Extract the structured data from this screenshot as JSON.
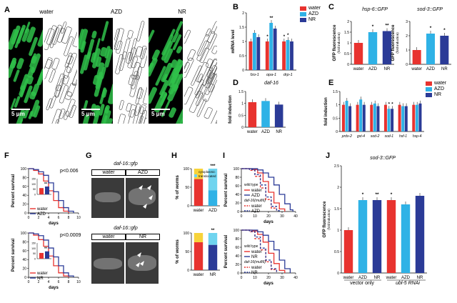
{
  "labels": {
    "A": "A",
    "B": "B",
    "C": "C",
    "D": "D",
    "E": "E",
    "F": "F",
    "G": "G",
    "H": "H",
    "I": "I",
    "J": "J"
  },
  "panelA": {
    "titles": [
      "water",
      "AZD",
      "NR"
    ],
    "scale": "5 μm"
  },
  "legend_main": {
    "items": [
      "water",
      "AZD",
      "NR"
    ],
    "colors": [
      "#e8332f",
      "#2fb2e6",
      "#2b3b97"
    ]
  },
  "panelC": {
    "titles": [
      "hsp-6::GFP",
      "sod-3::GFP"
    ]
  },
  "panelD": {
    "title": "daf-16"
  },
  "panelG": {
    "title_top": "daf-16::gfp",
    "title_bottom": "daf-16::gfp",
    "top_tabs": [
      "water",
      "AZD"
    ],
    "bottom_tabs": [
      "water",
      "NR"
    ]
  },
  "panelF": {
    "pvals": [
      "p<0.006",
      "p<0.0009"
    ]
  },
  "panelI": {
    "wt": "wild type",
    "mut": "daf-16(mu86)"
  },
  "panelJ": {
    "title": "sod-3::GFP",
    "groups": [
      "vector only",
      "ubl-5 RNAi"
    ]
  },
  "chart_data": [
    {
      "id": "B",
      "type": "bar",
      "categories": [
        "fzo-1",
        "opa-1",
        "drp-1"
      ],
      "ylabel": "mRNA level",
      "ylim": [
        0,
        2.0
      ],
      "yticks": [
        0,
        0.5,
        1.0,
        1.5,
        2.0
      ],
      "series": [
        {
          "name": "water",
          "values": [
            1.0,
            1.0,
            1.0
          ]
        },
        {
          "name": "AZD",
          "values": [
            1.3,
            1.65,
            1.05
          ]
        },
        {
          "name": "NR",
          "values": [
            1.15,
            1.45,
            1.0
          ]
        }
      ],
      "sig": [
        [
          "",
          "*",
          "*"
        ],
        [
          "",
          "**",
          "*"
        ],
        [
          "",
          "",
          ""
        ]
      ]
    },
    {
      "id": "C1",
      "type": "bar",
      "categories": [
        "water",
        "AZD",
        "NR"
      ],
      "ylabel": "GFP fluorescence",
      "ysub": "(fold induction)",
      "ylim": [
        0,
        2.0
      ],
      "yticks": [
        0,
        0.5,
        1.0,
        1.5,
        2.0
      ],
      "values": [
        1.0,
        1.5,
        1.55
      ],
      "sig": [
        "",
        "*",
        "**"
      ]
    },
    {
      "id": "C2",
      "type": "bar",
      "categories": [
        "water",
        "AZD",
        "NR"
      ],
      "ylabel": "GFP fluorescence",
      "ysub": "(fold induction)",
      "ylim": [
        0,
        3
      ],
      "yticks": [
        0,
        1,
        2,
        3
      ],
      "values": [
        1.0,
        2.15,
        2.0
      ],
      "sig": [
        "",
        "*",
        "*"
      ]
    },
    {
      "id": "D",
      "type": "bar",
      "categories": [
        "water",
        "AZD",
        "NR"
      ],
      "ylabel": "fold induction",
      "ylim": [
        0,
        1.5
      ],
      "yticks": [
        0,
        0.5,
        1.0,
        1.5
      ],
      "values": [
        1.05,
        1.1,
        0.95
      ]
    },
    {
      "id": "E",
      "type": "bar",
      "categories": [
        "prdx-2",
        "gst-4",
        "sod-2",
        "sod-1",
        "hsf-1",
        "hsp-4"
      ],
      "ylabel": "fold induction",
      "ylim": [
        0,
        1.5
      ],
      "yticks": [
        0,
        0.5,
        1.0,
        1.5
      ],
      "series": [
        {
          "name": "water",
          "values": [
            1.0,
            1.0,
            1.0,
            1.0,
            1.0,
            1.0
          ]
        },
        {
          "name": "AZD",
          "values": [
            1.15,
            1.2,
            1.05,
            0.85,
            0.95,
            1.0
          ]
        },
        {
          "name": "NR",
          "values": [
            0.95,
            1.0,
            0.95,
            0.85,
            0.95,
            1.05
          ]
        }
      ],
      "sig": [
        [
          "",
          "",
          "",
          "*",
          "",
          ""
        ],
        [
          "",
          "",
          "",
          "*",
          "",
          ""
        ]
      ]
    },
    {
      "id": "F1",
      "type": "line",
      "xlabel": "days",
      "ylabel": "Percent survival",
      "xlim": [
        0,
        10
      ],
      "ylim": [
        0,
        100
      ],
      "xticks": [
        0,
        2,
        4,
        6,
        8,
        10
      ],
      "yticks": [
        0,
        20,
        40,
        60,
        80,
        100
      ],
      "series": [
        {
          "name": "water",
          "x": [
            0,
            1,
            2,
            3,
            4,
            5,
            6,
            7,
            8
          ],
          "y": [
            100,
            96,
            88,
            72,
            50,
            28,
            12,
            4,
            0
          ]
        },
        {
          "name": "AZD",
          "x": [
            0,
            1,
            2,
            3,
            4,
            5,
            6,
            7,
            8,
            9
          ],
          "y": [
            100,
            98,
            93,
            85,
            68,
            48,
            28,
            12,
            4,
            0
          ]
        }
      ],
      "inset": {
        "ylim": [
          0,
          150
        ],
        "yticks": [
          0,
          50,
          100,
          150
        ],
        "values": [
          60,
          75
        ],
        "sig": "**"
      }
    },
    {
      "id": "F2",
      "type": "line",
      "xlabel": "days",
      "ylabel": "Percent survival",
      "xlim": [
        0,
        10
      ],
      "ylim": [
        0,
        100
      ],
      "xticks": [
        0,
        2,
        4,
        6,
        8,
        10
      ],
      "yticks": [
        0,
        20,
        40,
        60,
        80,
        100
      ],
      "series": [
        {
          "name": "water",
          "x": [
            0,
            1,
            2,
            3,
            4,
            5,
            6,
            7,
            8
          ],
          "y": [
            100,
            95,
            85,
            70,
            48,
            26,
            10,
            3,
            0
          ]
        },
        {
          "name": "NR",
          "x": [
            0,
            1,
            2,
            3,
            4,
            5,
            6,
            7,
            8,
            9
          ],
          "y": [
            100,
            98,
            94,
            84,
            66,
            46,
            26,
            10,
            3,
            0
          ]
        }
      ],
      "inset": {
        "ylim": [
          0,
          150
        ],
        "yticks": [
          0,
          50,
          100,
          150
        ],
        "values": [
          55,
          70
        ],
        "sig": "**"
      }
    },
    {
      "id": "H1",
      "type": "bar",
      "categories": [
        "water",
        "AZD"
      ],
      "ylabel": "% of worms",
      "ylim": [
        0,
        100
      ],
      "yticks": [
        0,
        50,
        100
      ],
      "series": [
        {
          "name": "cytoplasmic",
          "values": [
            72,
            42
          ]
        },
        {
          "name": "translocated",
          "values": [
            28,
            58
          ]
        }
      ],
      "sig": [
        "",
        "***"
      ]
    },
    {
      "id": "H2",
      "type": "bar",
      "categories": [
        "water",
        "NR"
      ],
      "ylabel": "% of worms",
      "ylim": [
        0,
        100
      ],
      "yticks": [
        0,
        50,
        100
      ],
      "series": [
        {
          "name": "cytoplasmic",
          "values": [
            75,
            68
          ]
        },
        {
          "name": "translocated",
          "values": [
            25,
            32
          ]
        }
      ],
      "sig": [
        "",
        "**"
      ]
    },
    {
      "id": "I1",
      "type": "line",
      "xlabel": "days",
      "ylabel": "Percent survival",
      "xlim": [
        0,
        40
      ],
      "ylim": [
        0,
        100
      ],
      "xticks": [
        0,
        10,
        20,
        30,
        40
      ],
      "yticks": [
        0,
        20,
        40,
        60,
        80,
        100
      ],
      "series": [
        {
          "name": "water",
          "x": [
            0,
            8,
            12,
            16,
            20,
            24,
            28,
            32
          ],
          "y": [
            100,
            98,
            90,
            70,
            45,
            20,
            6,
            0
          ]
        },
        {
          "name": "AZD",
          "x": [
            0,
            8,
            12,
            16,
            20,
            24,
            28,
            32,
            36,
            38
          ],
          "y": [
            100,
            100,
            97,
            90,
            80,
            62,
            40,
            18,
            4,
            0
          ]
        },
        {
          "name": "water (daf-16)",
          "x": [
            0,
            6,
            10,
            14,
            18,
            22,
            26
          ],
          "y": [
            100,
            96,
            82,
            55,
            28,
            8,
            0
          ]
        },
        {
          "name": "AZD (daf-16)",
          "x": [
            0,
            6,
            10,
            14,
            18,
            22,
            26,
            28
          ],
          "y": [
            100,
            98,
            86,
            62,
            34,
            12,
            2,
            0
          ]
        }
      ]
    },
    {
      "id": "I2",
      "type": "line",
      "xlabel": "days",
      "ylabel": "Percent survival",
      "xlim": [
        0,
        40
      ],
      "ylim": [
        0,
        100
      ],
      "xticks": [
        0,
        10,
        20,
        30,
        40
      ],
      "yticks": [
        0,
        20,
        40,
        60,
        80,
        100
      ],
      "series": [
        {
          "name": "water",
          "x": [
            0,
            8,
            12,
            16,
            20,
            24,
            28,
            32
          ],
          "y": [
            100,
            98,
            90,
            72,
            46,
            22,
            6,
            0
          ]
        },
        {
          "name": "NR",
          "x": [
            0,
            8,
            12,
            16,
            20,
            24,
            28,
            32,
            36
          ],
          "y": [
            100,
            100,
            96,
            88,
            74,
            54,
            30,
            10,
            0
          ]
        },
        {
          "name": "water (daf-16)",
          "x": [
            0,
            6,
            10,
            14,
            18,
            22,
            26
          ],
          "y": [
            100,
            96,
            80,
            54,
            26,
            8,
            0
          ]
        },
        {
          "name": "NR (daf-16)",
          "x": [
            0,
            6,
            10,
            14,
            18,
            22,
            26
          ],
          "y": [
            100,
            97,
            84,
            58,
            30,
            10,
            0
          ]
        }
      ]
    },
    {
      "id": "J",
      "type": "bar",
      "categories": [
        "water",
        "AZD",
        "NR",
        "water",
        "AZD",
        "NR"
      ],
      "ylabel": "GFP fluorescence",
      "ysub": "(fold induction)",
      "ylim": [
        0,
        2.5
      ],
      "yticks": [
        0,
        0.5,
        1.0,
        1.5,
        2.0,
        2.5
      ],
      "values": [
        1.0,
        1.7,
        1.7,
        1.7,
        1.6,
        1.8
      ],
      "sig": [
        "",
        "*",
        "**",
        "*",
        "",
        ""
      ]
    }
  ]
}
